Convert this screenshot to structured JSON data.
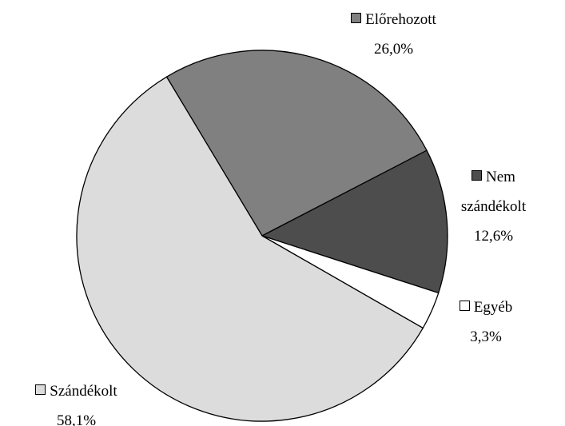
{
  "chart_data": {
    "type": "pie",
    "categories": [
      "Előrehozott",
      "Nem szándékolt",
      "Egyéb",
      "Szándékolt"
    ],
    "values": [
      26.0,
      12.6,
      3.3,
      58.1
    ],
    "value_labels": [
      "26,0%",
      "12,6%",
      "3,3%",
      "58,1%"
    ],
    "colors": [
      "#808080",
      "#4d4d4d",
      "#ffffff",
      "#dcdcdc"
    ]
  }
}
